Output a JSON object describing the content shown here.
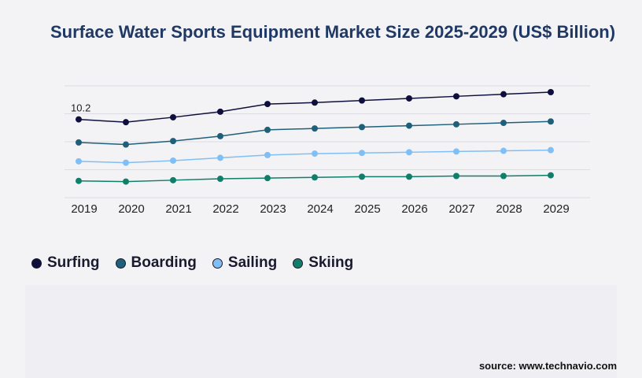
{
  "title": "Surface Water Sports Equipment Market Size 2025-2029 (US$ Billion)",
  "source": "source: www.technavio.com",
  "chart_data": {
    "type": "line",
    "title": "Surface Water Sports Equipment Market Size 2025-2029 (US$ Billion)",
    "x": [
      "2019",
      "2020",
      "2021",
      "2022",
      "2023",
      "2024",
      "2025",
      "2026",
      "2027",
      "2028",
      "2029"
    ],
    "series": [
      {
        "name": "Surfing",
        "color": "#0f0f3d",
        "values": [
          10.2,
          9.8,
          10.5,
          11.3,
          12.4,
          12.6,
          12.9,
          13.2,
          13.5,
          13.8,
          14.1
        ]
      },
      {
        "name": "Boarding",
        "color": "#1f5f7a",
        "values": [
          6.9,
          6.6,
          7.1,
          7.8,
          8.7,
          8.9,
          9.1,
          9.3,
          9.5,
          9.7,
          9.9
        ]
      },
      {
        "name": "Sailing",
        "color": "#7fbff5",
        "values": [
          4.2,
          4.0,
          4.3,
          4.7,
          5.1,
          5.3,
          5.4,
          5.5,
          5.6,
          5.7,
          5.8
        ]
      },
      {
        "name": "Skiing",
        "color": "#0f7f6a",
        "values": [
          1.4,
          1.3,
          1.5,
          1.7,
          1.8,
          1.9,
          2.0,
          2.0,
          2.1,
          2.1,
          2.2
        ]
      }
    ],
    "data_labels": [
      {
        "series": "Surfing",
        "index": 0,
        "text": "10.2"
      }
    ],
    "ylim": [
      -1,
      15
    ],
    "grid": true,
    "legend": "bottom-left",
    "xlabel": "",
    "ylabel": ""
  }
}
